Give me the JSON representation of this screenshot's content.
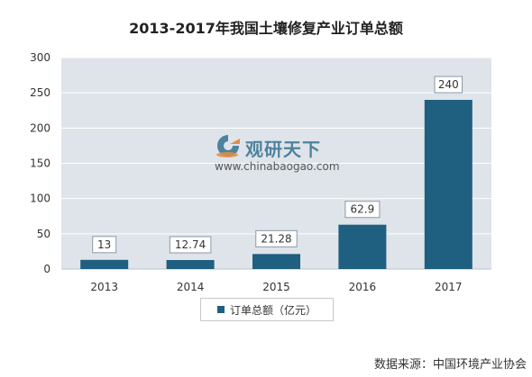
{
  "title": "2013-2017年我国土壤修复产业订单总额",
  "source": "数据来源：中国环境产业协会",
  "watermark": {
    "name": "观研天下",
    "url": "www.chinabaogao.com"
  },
  "colors": {
    "bar": "#1f5f7f",
    "plot_bg": "#dfe4ea",
    "grid": "#ffffff",
    "axis_text": "#333333",
    "label_border": "#8a9aa6"
  },
  "chart_data": {
    "type": "bar",
    "categories": [
      "2013",
      "2014",
      "2015",
      "2016",
      "2017"
    ],
    "series": [
      {
        "name": "订单总额（亿元）",
        "values": [
          13,
          12.74,
          21.28,
          62.9,
          240
        ]
      }
    ],
    "data_labels": [
      "13",
      "12.74",
      "21.28",
      "62.9",
      "240"
    ],
    "y_ticks": [
      "0",
      "50",
      "100",
      "150",
      "200",
      "250",
      "300"
    ],
    "ylim": [
      0,
      300
    ],
    "grid": true,
    "legend": "bottom"
  }
}
